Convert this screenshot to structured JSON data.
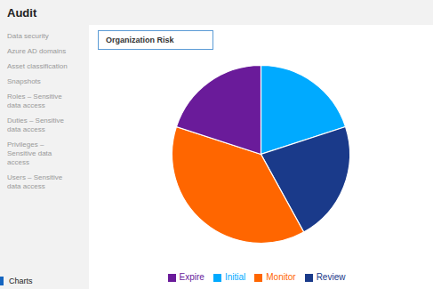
{
  "chart_data": {
    "type": "pie",
    "title": "Audit",
    "subtitle": "Organization Risk",
    "categories": [
      "Initial",
      "Review",
      "Monitor",
      "Expire"
    ],
    "values": [
      20,
      22,
      38,
      20
    ],
    "colors": [
      "#00AAFF",
      "#1A3A8A",
      "#FF6600",
      "#6A1B9A"
    ],
    "legend": "bottom",
    "annotations": [
      "Data security",
      "Azure AD domains",
      "Asset classification",
      "Snapshots",
      "Roles – Sensitive\ndata access",
      "Duties – Sensitive\ndata access",
      "Privileges –\nSensitive data\naccess",
      "Users – Sensitive\ndata access",
      "Charts"
    ]
  }
}
